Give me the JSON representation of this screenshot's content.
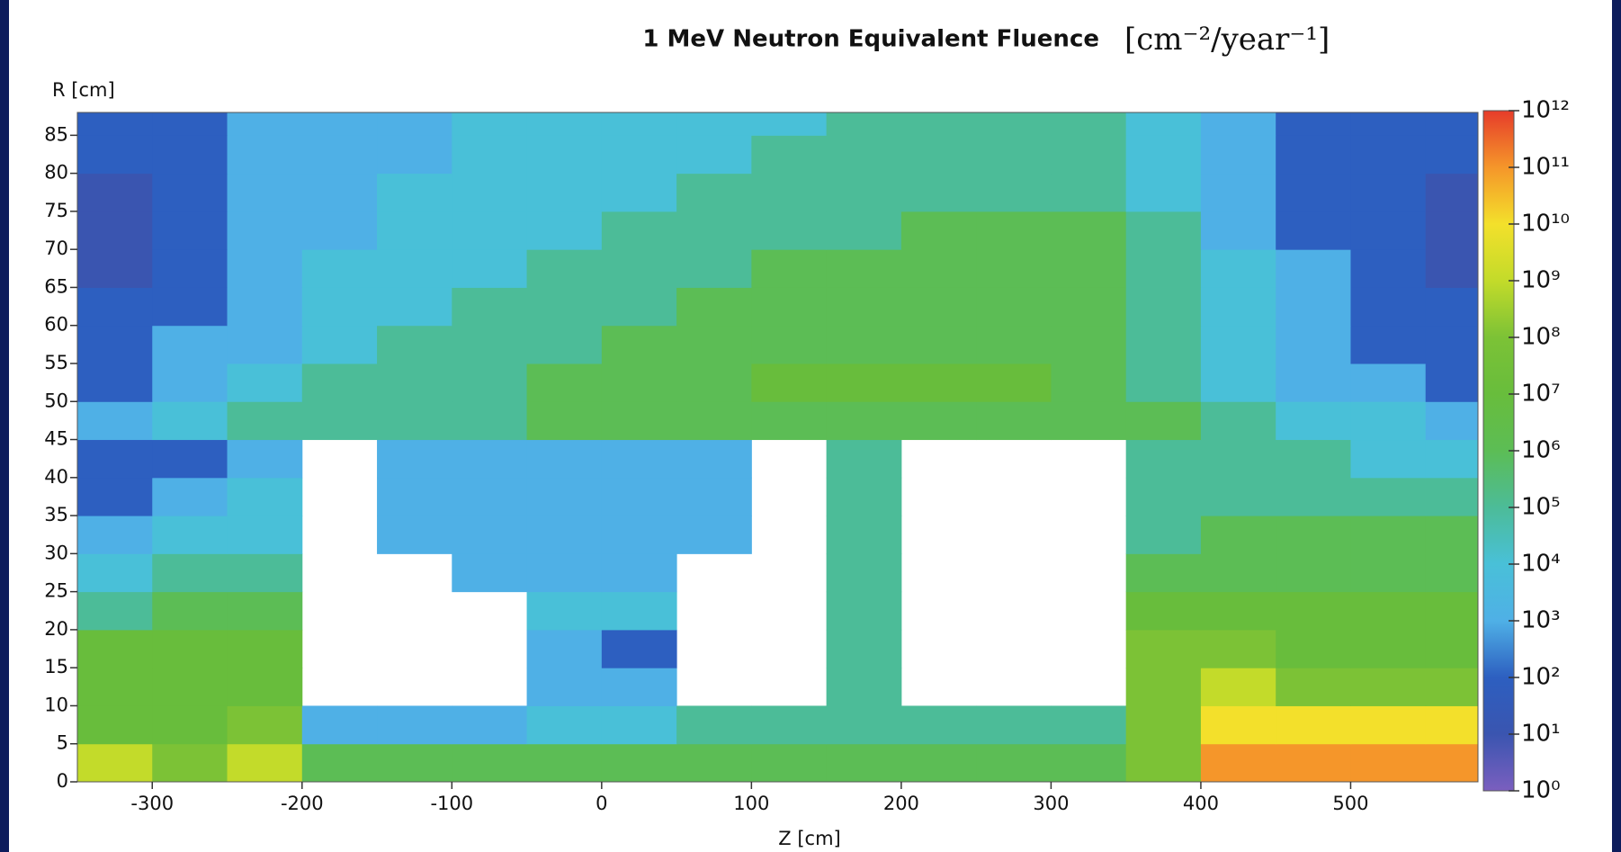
{
  "chart_data": {
    "type": "heatmap",
    "title": "1 MeV Neutron Equivalent Fluence",
    "units": "[cm⁻²/year⁻¹]",
    "x_label": "Z [cm]",
    "y_label": "R [cm]",
    "xlim": [
      -350,
      585
    ],
    "ylim": [
      0,
      88
    ],
    "xticks": [
      -300,
      -200,
      -100,
      0,
      100,
      200,
      300,
      400,
      500
    ],
    "yticks": [
      0,
      5,
      10,
      15,
      20,
      25,
      30,
      35,
      40,
      45,
      50,
      55,
      60,
      65,
      70,
      75,
      80,
      85
    ],
    "x_edges": [
      -350,
      -300,
      -250,
      -200,
      -150,
      -100,
      -50,
      0,
      50,
      100,
      150,
      200,
      250,
      300,
      350,
      400,
      450,
      500,
      550,
      585
    ],
    "y_edges": [
      0,
      5,
      10,
      15,
      20,
      25,
      30,
      35,
      40,
      45,
      50,
      55,
      60,
      65,
      70,
      75,
      80,
      85,
      88
    ],
    "z": [
      [
        1000000000.0,
        100000000.0,
        1000000000.0,
        1000000.0,
        1000000.0,
        1000000.0,
        1000000.0,
        1000000.0,
        1000000.0,
        1000000.0,
        1000000.0,
        1000000.0,
        1000000.0,
        1000000.0,
        100000000.0,
        100000000000.0,
        100000000000.0,
        100000000000.0,
        100000000000.0
      ],
      [
        10000000.0,
        10000000.0,
        100000000.0,
        1000.0,
        1000.0,
        1000.0,
        10000.0,
        10000.0,
        100000.0,
        100000.0,
        100000.0,
        100000.0,
        100000.0,
        100000.0,
        100000000.0,
        10000000000.0,
        10000000000.0,
        10000000000.0,
        10000000000.0
      ],
      [
        10000000.0,
        10000000.0,
        10000000.0,
        null,
        null,
        null,
        1000.0,
        1000.0,
        null,
        null,
        100000.0,
        null,
        null,
        null,
        100000000.0,
        1000000000.0,
        100000000.0,
        100000000.0,
        100000000.0
      ],
      [
        10000000.0,
        10000000.0,
        10000000.0,
        null,
        null,
        null,
        1000.0,
        100.0,
        null,
        null,
        100000.0,
        null,
        null,
        null,
        100000000.0,
        100000000.0,
        10000000.0,
        10000000.0,
        10000000.0
      ],
      [
        100000.0,
        1000000.0,
        1000000.0,
        null,
        null,
        null,
        10000.0,
        10000.0,
        null,
        null,
        100000.0,
        null,
        null,
        null,
        10000000.0,
        10000000.0,
        10000000.0,
        10000000.0,
        10000000.0
      ],
      [
        10000.0,
        100000.0,
        100000.0,
        null,
        null,
        1000.0,
        1000.0,
        1000.0,
        null,
        null,
        100000.0,
        null,
        null,
        null,
        1000000.0,
        1000000.0,
        1000000.0,
        1000000.0,
        1000000.0
      ],
      [
        1000.0,
        10000.0,
        10000.0,
        null,
        1000.0,
        1000.0,
        1000.0,
        1000.0,
        1000.0,
        null,
        100000.0,
        null,
        null,
        null,
        100000.0,
        1000000.0,
        1000000.0,
        1000000.0,
        1000000.0
      ],
      [
        100.0,
        1000.0,
        10000.0,
        null,
        1000.0,
        1000.0,
        1000.0,
        1000.0,
        1000.0,
        null,
        100000.0,
        null,
        null,
        null,
        100000.0,
        100000.0,
        100000.0,
        100000.0,
        100000.0
      ],
      [
        100.0,
        100.0,
        1000.0,
        null,
        1000.0,
        1000.0,
        1000.0,
        1000.0,
        1000.0,
        null,
        100000.0,
        null,
        null,
        null,
        100000.0,
        100000.0,
        100000.0,
        10000.0,
        10000.0
      ],
      [
        1000.0,
        10000.0,
        100000.0,
        100000.0,
        100000.0,
        100000.0,
        1000000.0,
        1000000.0,
        1000000.0,
        1000000.0,
        1000000.0,
        1000000.0,
        1000000.0,
        1000000.0,
        1000000.0,
        100000.0,
        10000.0,
        10000.0,
        1000.0
      ],
      [
        100.0,
        1000.0,
        10000.0,
        100000.0,
        100000.0,
        100000.0,
        1000000.0,
        1000000.0,
        1000000.0,
        10000000.0,
        10000000.0,
        10000000.0,
        10000000.0,
        1000000.0,
        100000.0,
        10000.0,
        1000.0,
        1000.0,
        100.0
      ],
      [
        100.0,
        1000.0,
        1000.0,
        10000.0,
        100000.0,
        100000.0,
        100000.0,
        1000000.0,
        1000000.0,
        1000000.0,
        1000000.0,
        1000000.0,
        1000000.0,
        1000000.0,
        100000.0,
        10000.0,
        1000.0,
        100.0,
        100.0
      ],
      [
        100.0,
        100.0,
        1000.0,
        10000.0,
        10000.0,
        100000.0,
        100000.0,
        100000.0,
        1000000.0,
        1000000.0,
        1000000.0,
        1000000.0,
        1000000.0,
        1000000.0,
        100000.0,
        10000.0,
        1000.0,
        100.0,
        100.0
      ],
      [
        10.0,
        100.0,
        1000.0,
        10000.0,
        10000.0,
        10000.0,
        100000.0,
        100000.0,
        100000.0,
        1000000.0,
        1000000.0,
        1000000.0,
        1000000.0,
        1000000.0,
        100000.0,
        10000.0,
        1000.0,
        100.0,
        10.0
      ],
      [
        10.0,
        100.0,
        1000.0,
        1000.0,
        10000.0,
        10000.0,
        10000.0,
        100000.0,
        100000.0,
        100000.0,
        100000.0,
        1000000.0,
        1000000.0,
        1000000.0,
        100000.0,
        1000.0,
        100.0,
        100.0,
        10.0
      ],
      [
        10.0,
        100.0,
        1000.0,
        1000.0,
        10000.0,
        10000.0,
        10000.0,
        10000.0,
        100000.0,
        100000.0,
        100000.0,
        100000.0,
        100000.0,
        100000.0,
        10000.0,
        1000.0,
        100.0,
        100.0,
        10.0
      ],
      [
        100.0,
        100.0,
        1000.0,
        1000.0,
        1000.0,
        10000.0,
        10000.0,
        10000.0,
        10000.0,
        100000.0,
        100000.0,
        100000.0,
        100000.0,
        100000.0,
        10000.0,
        1000.0,
        100.0,
        100.0,
        100.0
      ],
      [
        100.0,
        100.0,
        1000.0,
        1000.0,
        1000.0,
        10000.0,
        10000.0,
        10000.0,
        10000.0,
        10000.0,
        100000.0,
        100000.0,
        100000.0,
        100000.0,
        10000.0,
        1000.0,
        100.0,
        100.0,
        100.0
      ]
    ],
    "colorbar_log": true,
    "colorbar_lim": [
      1,
      1000000000000.0
    ],
    "colorbar_ticks": [
      {
        "value": 1,
        "label": "10⁰"
      },
      {
        "value": 10.0,
        "label": "10¹"
      },
      {
        "value": 100.0,
        "label": "10²"
      },
      {
        "value": 1000.0,
        "label": "10³"
      },
      {
        "value": 10000.0,
        "label": "10⁴"
      },
      {
        "value": 100000.0,
        "label": "10⁵"
      },
      {
        "value": 1000000.0,
        "label": "10⁶"
      },
      {
        "value": 10000000.0,
        "label": "10⁷"
      },
      {
        "value": 100000000.0,
        "label": "10⁸"
      },
      {
        "value": 1000000000.0,
        "label": "10⁹"
      },
      {
        "value": 10000000000.0,
        "label": "10¹⁰"
      },
      {
        "value": 100000000000.0,
        "label": "10¹¹"
      },
      {
        "value": 1000000000000.0,
        "label": "10¹²"
      }
    ],
    "colorscale": [
      "#7b5fbf",
      "#3a55b0",
      "#2d5fc0",
      "#4fb0e6",
      "#49c0d8",
      "#4cbc98",
      "#5cbd55",
      "#68bd3c",
      "#7cc236",
      "#c3db2a",
      "#f3e02b",
      "#f5962a",
      "#e63c2a"
    ]
  }
}
